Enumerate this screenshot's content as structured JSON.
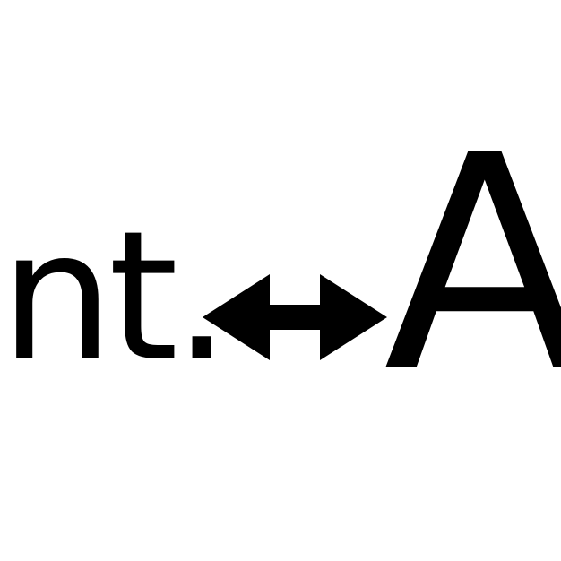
{
  "left_text": "nt.",
  "right_letter": "A",
  "arrow_icon": "double-headed-horizontal-arrow-icon",
  "colors": {
    "background": "#ffffff",
    "foreground": "#000000"
  }
}
